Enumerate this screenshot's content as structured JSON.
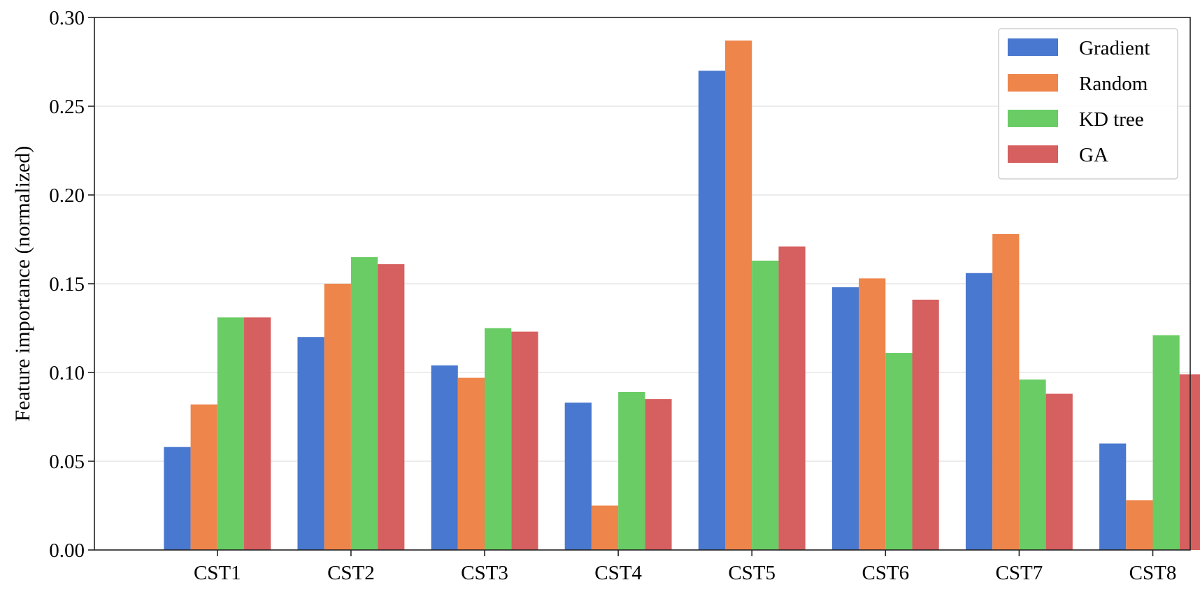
{
  "chart_data": {
    "type": "bar",
    "title": "",
    "xlabel": "",
    "ylabel": "Feature importance (normalized)",
    "categories": [
      "CST1",
      "CST2",
      "CST3",
      "CST4",
      "CST5",
      "CST6",
      "CST7",
      "CST8"
    ],
    "ylim": [
      0,
      0.3
    ],
    "yticks": [
      "0.00",
      "0.05",
      "0.10",
      "0.15",
      "0.20",
      "0.25",
      "0.30"
    ],
    "grid": "horizontal",
    "legend_position": "top-right",
    "series": [
      {
        "name": "Gradient",
        "color": "#4878CF",
        "values": [
          0.058,
          0.12,
          0.104,
          0.083,
          0.27,
          0.148,
          0.156,
          0.06
        ]
      },
      {
        "name": "Random",
        "color": "#EE854A",
        "values": [
          0.082,
          0.15,
          0.097,
          0.025,
          0.287,
          0.153,
          0.178,
          0.028
        ]
      },
      {
        "name": "KD tree",
        "color": "#6ACC64",
        "values": [
          0.131,
          0.165,
          0.125,
          0.089,
          0.163,
          0.111,
          0.096,
          0.121
        ]
      },
      {
        "name": "GA",
        "color": "#D65F5F",
        "values": [
          0.131,
          0.161,
          0.123,
          0.085,
          0.171,
          0.141,
          0.088,
          0.099
        ]
      }
    ]
  }
}
